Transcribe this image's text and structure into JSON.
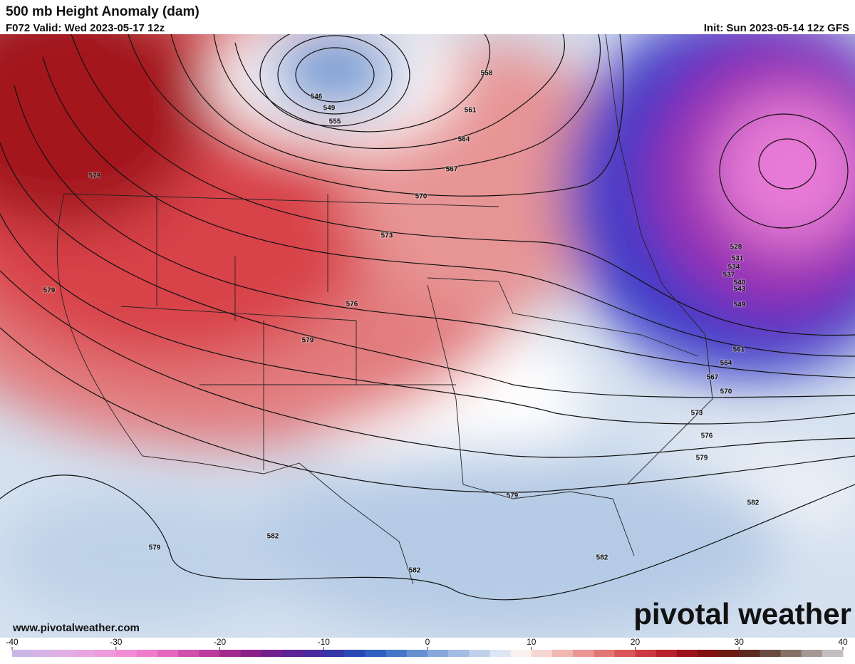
{
  "header": {
    "title": "500 mb Height Anomaly (dam)",
    "valid": "F072 Valid: Wed 2023-05-17 12z",
    "init": "Init: Sun 2023-05-14 12z GFS"
  },
  "map": {
    "contour_labels": [
      546,
      549,
      555,
      558,
      561,
      564,
      567,
      570,
      573,
      576,
      579,
      579,
      579,
      528,
      531,
      534,
      537,
      540,
      543,
      549,
      561,
      564,
      567,
      570,
      573,
      576,
      579,
      582,
      579,
      582,
      579,
      582,
      582
    ]
  },
  "watermark": "pivotal weather",
  "url": "www.pivotalweather.com",
  "colorbar": {
    "range": [
      -40,
      40
    ],
    "ticks": [
      -40,
      -30,
      -20,
      -10,
      0,
      10,
      20,
      30,
      40
    ],
    "colors": [
      "#c9b6e6",
      "#d6b3e6",
      "#e0aee4",
      "#e8a6e0",
      "#ee9bdb",
      "#f18dd4",
      "#ee7cca",
      "#e466bd",
      "#d24fae",
      "#bb3a9d",
      "#a22a8d",
      "#8b2188",
      "#74208c",
      "#5e2394",
      "#4a2a9e",
      "#3536a8",
      "#2a48b5",
      "#2f5fc0",
      "#4676c8",
      "#6690d2",
      "#86a8dc",
      "#a4bde4",
      "#c1d1ec",
      "#dce6f4",
      "#fbf2f0",
      "#f7d5d2",
      "#f1b6b2",
      "#ea9693",
      "#e27675",
      "#d85659",
      "#cc3940",
      "#b8222b",
      "#9d121c",
      "#821014",
      "#6c1a12",
      "#5c2a1e",
      "#6b4a40",
      "#877068",
      "#a39894",
      "#c2bfbe"
    ]
  }
}
